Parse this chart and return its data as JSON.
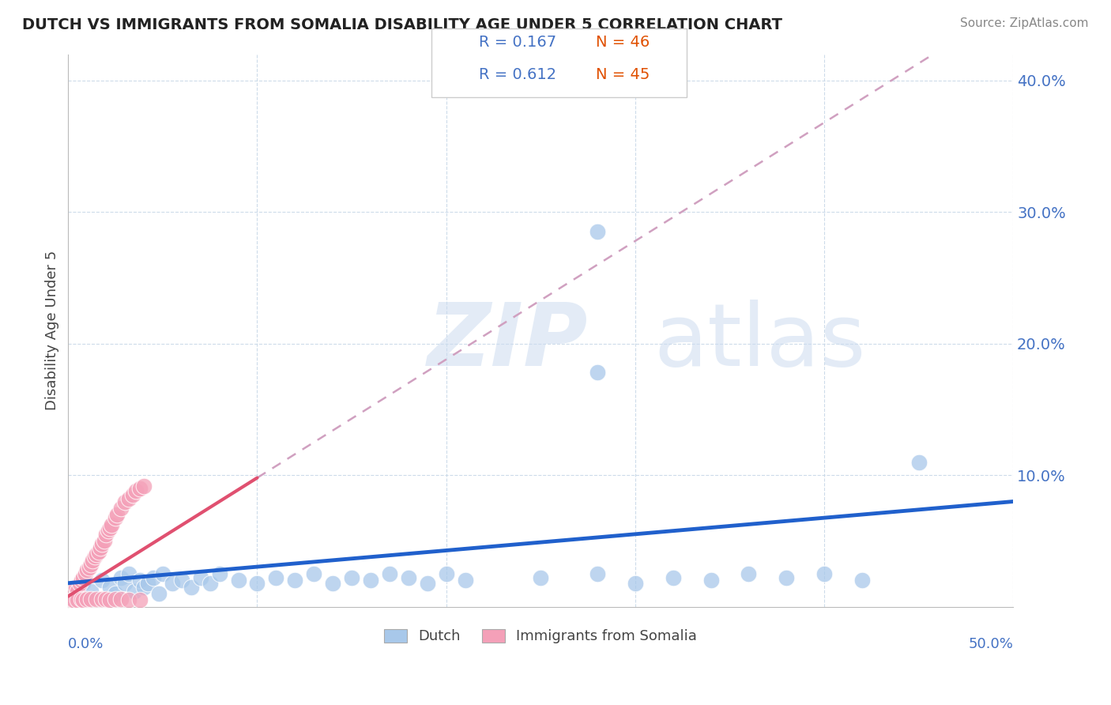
{
  "title": "DUTCH VS IMMIGRANTS FROM SOMALIA DISABILITY AGE UNDER 5 CORRELATION CHART",
  "source": "Source: ZipAtlas.com",
  "ylabel": "Disability Age Under 5",
  "xlim": [
    0.0,
    0.5
  ],
  "ylim": [
    0.0,
    0.42
  ],
  "ytick_vals": [
    0.1,
    0.2,
    0.3,
    0.4
  ],
  "ytick_labels": [
    "10.0%",
    "20.0%",
    "30.0%",
    "40.0%"
  ],
  "legend_r_dutch": "R = 0.167",
  "legend_n_dutch": "N = 46",
  "legend_r_somalia": "R = 0.612",
  "legend_n_somalia": "N = 45",
  "dutch_color": "#a8c8ea",
  "somalia_color": "#f4a0b8",
  "dutch_line_color": "#2060cc",
  "somalia_line_color": "#e05070",
  "trendline_dashed_color": "#d0a0c0",
  "background_color": "#ffffff",
  "grid_color": "#c8d8e8",
  "dutch_scatter_x": [
    0.008,
    0.012,
    0.018,
    0.022,
    0.025,
    0.028,
    0.03,
    0.032,
    0.035,
    0.038,
    0.04,
    0.042,
    0.045,
    0.048,
    0.05,
    0.055,
    0.06,
    0.065,
    0.07,
    0.075,
    0.08,
    0.09,
    0.1,
    0.11,
    0.12,
    0.13,
    0.14,
    0.15,
    0.16,
    0.17,
    0.18,
    0.19,
    0.2,
    0.21,
    0.25,
    0.28,
    0.3,
    0.32,
    0.34,
    0.36,
    0.38,
    0.4,
    0.42,
    0.45,
    0.28,
    0.28
  ],
  "dutch_scatter_y": [
    0.018,
    0.012,
    0.02,
    0.015,
    0.01,
    0.022,
    0.018,
    0.025,
    0.012,
    0.02,
    0.015,
    0.018,
    0.022,
    0.01,
    0.025,
    0.018,
    0.02,
    0.015,
    0.022,
    0.018,
    0.025,
    0.02,
    0.018,
    0.022,
    0.02,
    0.025,
    0.018,
    0.022,
    0.02,
    0.025,
    0.022,
    0.018,
    0.025,
    0.02,
    0.022,
    0.025,
    0.018,
    0.022,
    0.02,
    0.025,
    0.022,
    0.025,
    0.02,
    0.11,
    0.285,
    0.178
  ],
  "somalia_scatter_x": [
    0.002,
    0.004,
    0.005,
    0.006,
    0.007,
    0.008,
    0.009,
    0.01,
    0.011,
    0.012,
    0.013,
    0.014,
    0.015,
    0.016,
    0.017,
    0.018,
    0.019,
    0.02,
    0.021,
    0.022,
    0.023,
    0.025,
    0.026,
    0.028,
    0.03,
    0.032,
    0.034,
    0.036,
    0.038,
    0.04,
    0.002,
    0.003,
    0.005,
    0.007,
    0.008,
    0.01,
    0.012,
    0.015,
    0.018,
    0.02,
    0.022,
    0.025,
    0.028,
    0.032,
    0.038
  ],
  "somalia_scatter_y": [
    0.01,
    0.015,
    0.012,
    0.018,
    0.02,
    0.022,
    0.025,
    0.028,
    0.03,
    0.032,
    0.035,
    0.038,
    0.04,
    0.042,
    0.045,
    0.048,
    0.05,
    0.055,
    0.058,
    0.06,
    0.062,
    0.068,
    0.07,
    0.075,
    0.08,
    0.082,
    0.085,
    0.088,
    0.09,
    0.092,
    0.005,
    0.005,
    0.005,
    0.006,
    0.005,
    0.006,
    0.006,
    0.006,
    0.006,
    0.006,
    0.005,
    0.006,
    0.006,
    0.005,
    0.005
  ],
  "dutch_trend_x0": 0.0,
  "dutch_trend_x1": 0.5,
  "dutch_trend_y0": 0.018,
  "dutch_trend_y1": 0.08,
  "somalia_trend_solid_x0": 0.0,
  "somalia_trend_solid_x1": 0.1,
  "somalia_trend_y0": 0.008,
  "somalia_trend_slope": 0.9,
  "somalia_trend_dash_x1": 0.5
}
